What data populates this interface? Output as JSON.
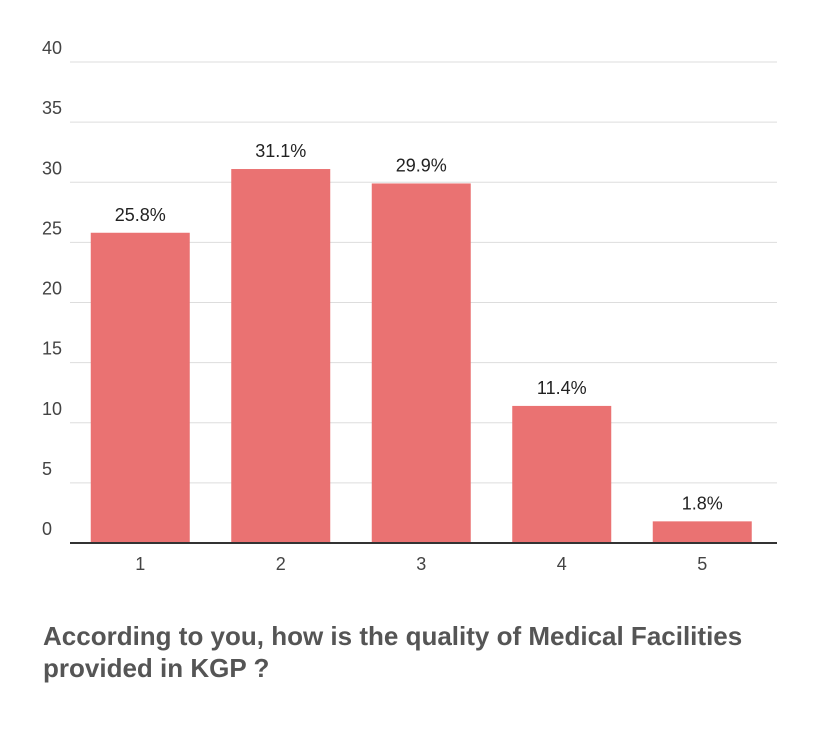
{
  "chart_data": {
    "type": "bar",
    "title": "According to you, how is the quality of Medical Facilities provided in KGP ?",
    "xlabel": "",
    "ylabel": "",
    "categories": [
      "1",
      "2",
      "3",
      "4",
      "5"
    ],
    "values": [
      25.8,
      31.1,
      29.9,
      11.4,
      1.8
    ],
    "data_labels": [
      "25.8%",
      "31.1%",
      "29.9%",
      "11.4%",
      "1.8%"
    ],
    "ylim": [
      0,
      40
    ],
    "yticks": [
      "0",
      "5",
      "10",
      "15",
      "20",
      "25",
      "30",
      "35",
      "40"
    ],
    "ytick_values": [
      0,
      5,
      10,
      15,
      20,
      25,
      30,
      35,
      40
    ],
    "grid": true,
    "legend": "none",
    "bar_color": "#ea7272",
    "grid_color": "#dddddd",
    "axis_color": "#333333"
  }
}
